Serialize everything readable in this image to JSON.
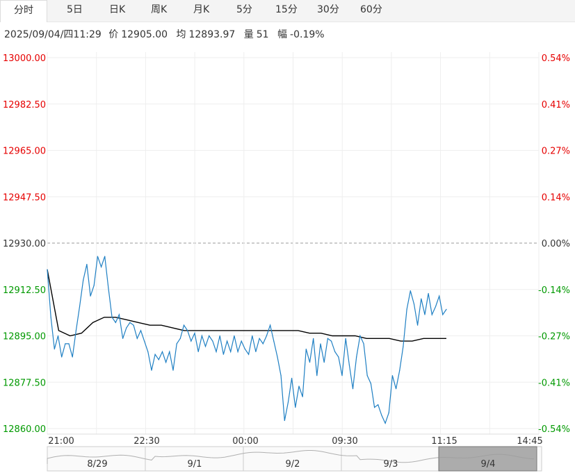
{
  "tabs": [
    {
      "label": "分时",
      "active": true
    },
    {
      "label": "5日",
      "active": false
    },
    {
      "label": "日K",
      "active": false
    },
    {
      "label": "周K",
      "active": false
    },
    {
      "label": "月K",
      "active": false
    },
    {
      "label": "5分",
      "active": false
    },
    {
      "label": "15分",
      "active": false
    },
    {
      "label": "30分",
      "active": false
    },
    {
      "label": "60分",
      "active": false
    }
  ],
  "info": {
    "datetime": "2025/09/04/四11:29",
    "price_label": "价",
    "price": "12905.00",
    "avg_label": "均",
    "avg": "12893.97",
    "vol_label": "量",
    "vol": "51",
    "chg_label": "幅",
    "chg": "-0.19%"
  },
  "colors": {
    "up": "#e60000",
    "down": "#009900",
    "flat": "#333333",
    "price_line": "#1e7fc3",
    "avg_line": "#000000"
  },
  "chart_data": {
    "type": "line",
    "ylim": [
      12860,
      13000
    ],
    "base": 12930,
    "y_ticks": [
      {
        "value": 13000,
        "label": "13000.00",
        "pct": "0.54%"
      },
      {
        "value": 12982.5,
        "label": "12982.50",
        "pct": "0.41%"
      },
      {
        "value": 12965,
        "label": "12965.00",
        "pct": "0.27%"
      },
      {
        "value": 12947.5,
        "label": "12947.50",
        "pct": "0.14%"
      },
      {
        "value": 12930,
        "label": "12930.00",
        "pct": "0.00%"
      },
      {
        "value": 12912.5,
        "label": "12912.50",
        "pct": "-0.14%"
      },
      {
        "value": 12895,
        "label": "12895.00",
        "pct": "-0.27%"
      },
      {
        "value": 12877.5,
        "label": "12877.50",
        "pct": "-0.41%"
      },
      {
        "value": 12860,
        "label": "12860.00",
        "pct": "-0.54%"
      }
    ],
    "x_ticks": [
      "21:00",
      "22:30",
      "00:00",
      "09:30",
      "11:15",
      "14:45"
    ],
    "series": [
      {
        "values": [
          12920,
          12902,
          12890,
          12895,
          12887,
          12892,
          12892,
          12887,
          12897,
          12906,
          12916,
          12922,
          12910,
          12914,
          12925,
          12921,
          12925,
          12913,
          12902,
          12900,
          12903,
          12894,
          12898,
          12900,
          12899,
          12894,
          12897,
          12893,
          12889,
          12882,
          12888,
          12886,
          12889,
          12885,
          12889,
          12882,
          12892,
          12894,
          12899,
          12897,
          12893,
          12896,
          12889,
          12895,
          12891,
          12895,
          12893,
          12889,
          12895,
          12888,
          12893,
          12889,
          12895,
          12889,
          12893,
          12890,
          12888,
          12895,
          12889,
          12894,
          12892,
          12895,
          12899,
          12893,
          12887,
          12880,
          12863,
          12870,
          12879,
          12868,
          12876,
          12872,
          12890,
          12885,
          12894,
          12880,
          12892,
          12885,
          12894,
          12893,
          12889,
          12887,
          12880,
          12894,
          12884,
          12875,
          12887,
          12895,
          12892,
          12880,
          12877,
          12868,
          12869,
          12865,
          12862,
          12866,
          12880,
          12875,
          12882,
          12891,
          12905,
          12912,
          12907,
          12899,
          12909,
          12903,
          12911,
          12903,
          12906,
          12910,
          12903,
          12905
        ],
        "name": ""
      },
      {
        "values": [
          12920,
          12897,
          12895,
          12896,
          12900,
          12902,
          12902,
          12901,
          12900,
          12899,
          12899,
          12898,
          12897,
          12897,
          12897,
          12897,
          12897,
          12897,
          12897,
          12897,
          12897,
          12897,
          12897,
          12896,
          12896,
          12895,
          12895,
          12895,
          12894,
          12894,
          12894,
          12893,
          12893,
          12894,
          12894,
          12894
        ],
        "name": ""
      }
    ]
  },
  "navigator": {
    "labels": [
      "8/29",
      "9/1",
      "9/2",
      "9/3",
      "9/4"
    ]
  }
}
